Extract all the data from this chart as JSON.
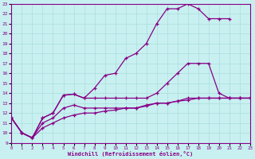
{
  "xlabel": "Windchill (Refroidissement éolien,°C)",
  "background_color": "#c8f0f0",
  "line_color": "#880088",
  "grid_color": "#aadddd",
  "xmin": 0,
  "xmax": 23,
  "ymin": 9,
  "ymax": 23,
  "series": [
    {
      "x": [
        0,
        1,
        2,
        3,
        4,
        5,
        6,
        7,
        8,
        9,
        10,
        11,
        12,
        13,
        14,
        15,
        16,
        17,
        18,
        19,
        20,
        21
      ],
      "y": [
        11.5,
        10.0,
        9.5,
        11.5,
        12.0,
        13.8,
        13.9,
        13.5,
        14.5,
        15.8,
        16.0,
        17.5,
        18.0,
        19.0,
        21.0,
        22.5,
        22.5,
        23.0,
        22.5,
        21.5,
        21.5,
        21.5
      ]
    },
    {
      "x": [
        0,
        1,
        2,
        3,
        4,
        5,
        6,
        7,
        8,
        9,
        10,
        11,
        12,
        13,
        14,
        15,
        16,
        17,
        18,
        19,
        20,
        21,
        22,
        23
      ],
      "y": [
        11.5,
        10.0,
        9.5,
        11.5,
        12.0,
        13.8,
        13.9,
        13.5,
        13.5,
        13.5,
        13.5,
        13.5,
        13.5,
        13.5,
        14.0,
        15.0,
        16.0,
        17.0,
        17.0,
        17.0,
        14.0,
        13.5,
        13.5,
        13.5
      ]
    },
    {
      "x": [
        0,
        1,
        2,
        3,
        4,
        5,
        6,
        7,
        8,
        9,
        10,
        11,
        12,
        13,
        14,
        15,
        16,
        17,
        18,
        19,
        20,
        21,
        22,
        23
      ],
      "y": [
        11.5,
        10.0,
        9.5,
        11.0,
        11.5,
        12.5,
        12.8,
        12.5,
        12.5,
        12.5,
        12.5,
        12.5,
        12.5,
        12.8,
        13.0,
        13.0,
        13.2,
        13.5,
        13.5,
        13.5,
        13.5,
        13.5,
        13.5,
        13.5
      ]
    },
    {
      "x": [
        0,
        1,
        2,
        3,
        4,
        5,
        6,
        7,
        8,
        9,
        10,
        11,
        12,
        13,
        14,
        15,
        16,
        17,
        18,
        19,
        20,
        21,
        22,
        23
      ],
      "y": [
        11.5,
        10.0,
        9.5,
        10.5,
        11.0,
        11.5,
        11.8,
        12.0,
        12.0,
        12.2,
        12.3,
        12.5,
        12.5,
        12.7,
        13.0,
        13.0,
        13.2,
        13.3,
        13.5,
        13.5,
        13.5,
        13.5,
        13.5,
        13.5
      ]
    }
  ]
}
